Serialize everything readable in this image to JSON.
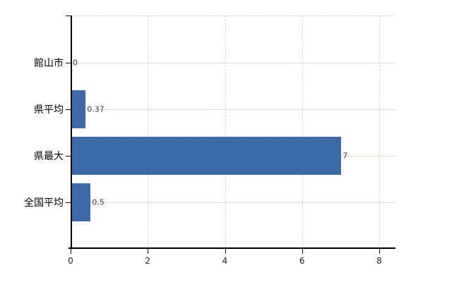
{
  "chart_data": {
    "type": "bar",
    "orientation": "horizontal",
    "title": "",
    "xlabel": "",
    "ylabel": "",
    "categories": [
      "館山市",
      "県平均",
      "県最大",
      "全国平均"
    ],
    "values": [
      0,
      0.37,
      7,
      0.5
    ],
    "value_labels": [
      "0",
      "0.37",
      "7",
      "0.5"
    ],
    "xlim": [
      0,
      8
    ],
    "x_ticks": [
      0,
      2,
      4,
      6,
      8
    ],
    "x_tick_labels": [
      "0",
      "2",
      "4",
      "6",
      "8"
    ],
    "grid": true,
    "legend": false,
    "colors": {
      "bar_fill_light": "#4a77b4",
      "bar_fill_dark": "#2d5f9e",
      "axis": "#000000",
      "h_gridline": "#d5dfd1",
      "v_gridline": "#d6d6d6",
      "top_border": "#d9cfcf",
      "tick_label": "#222222",
      "value_label": "#3c3c3c",
      "category_label": "#000000",
      "background": "#ffffff"
    }
  }
}
